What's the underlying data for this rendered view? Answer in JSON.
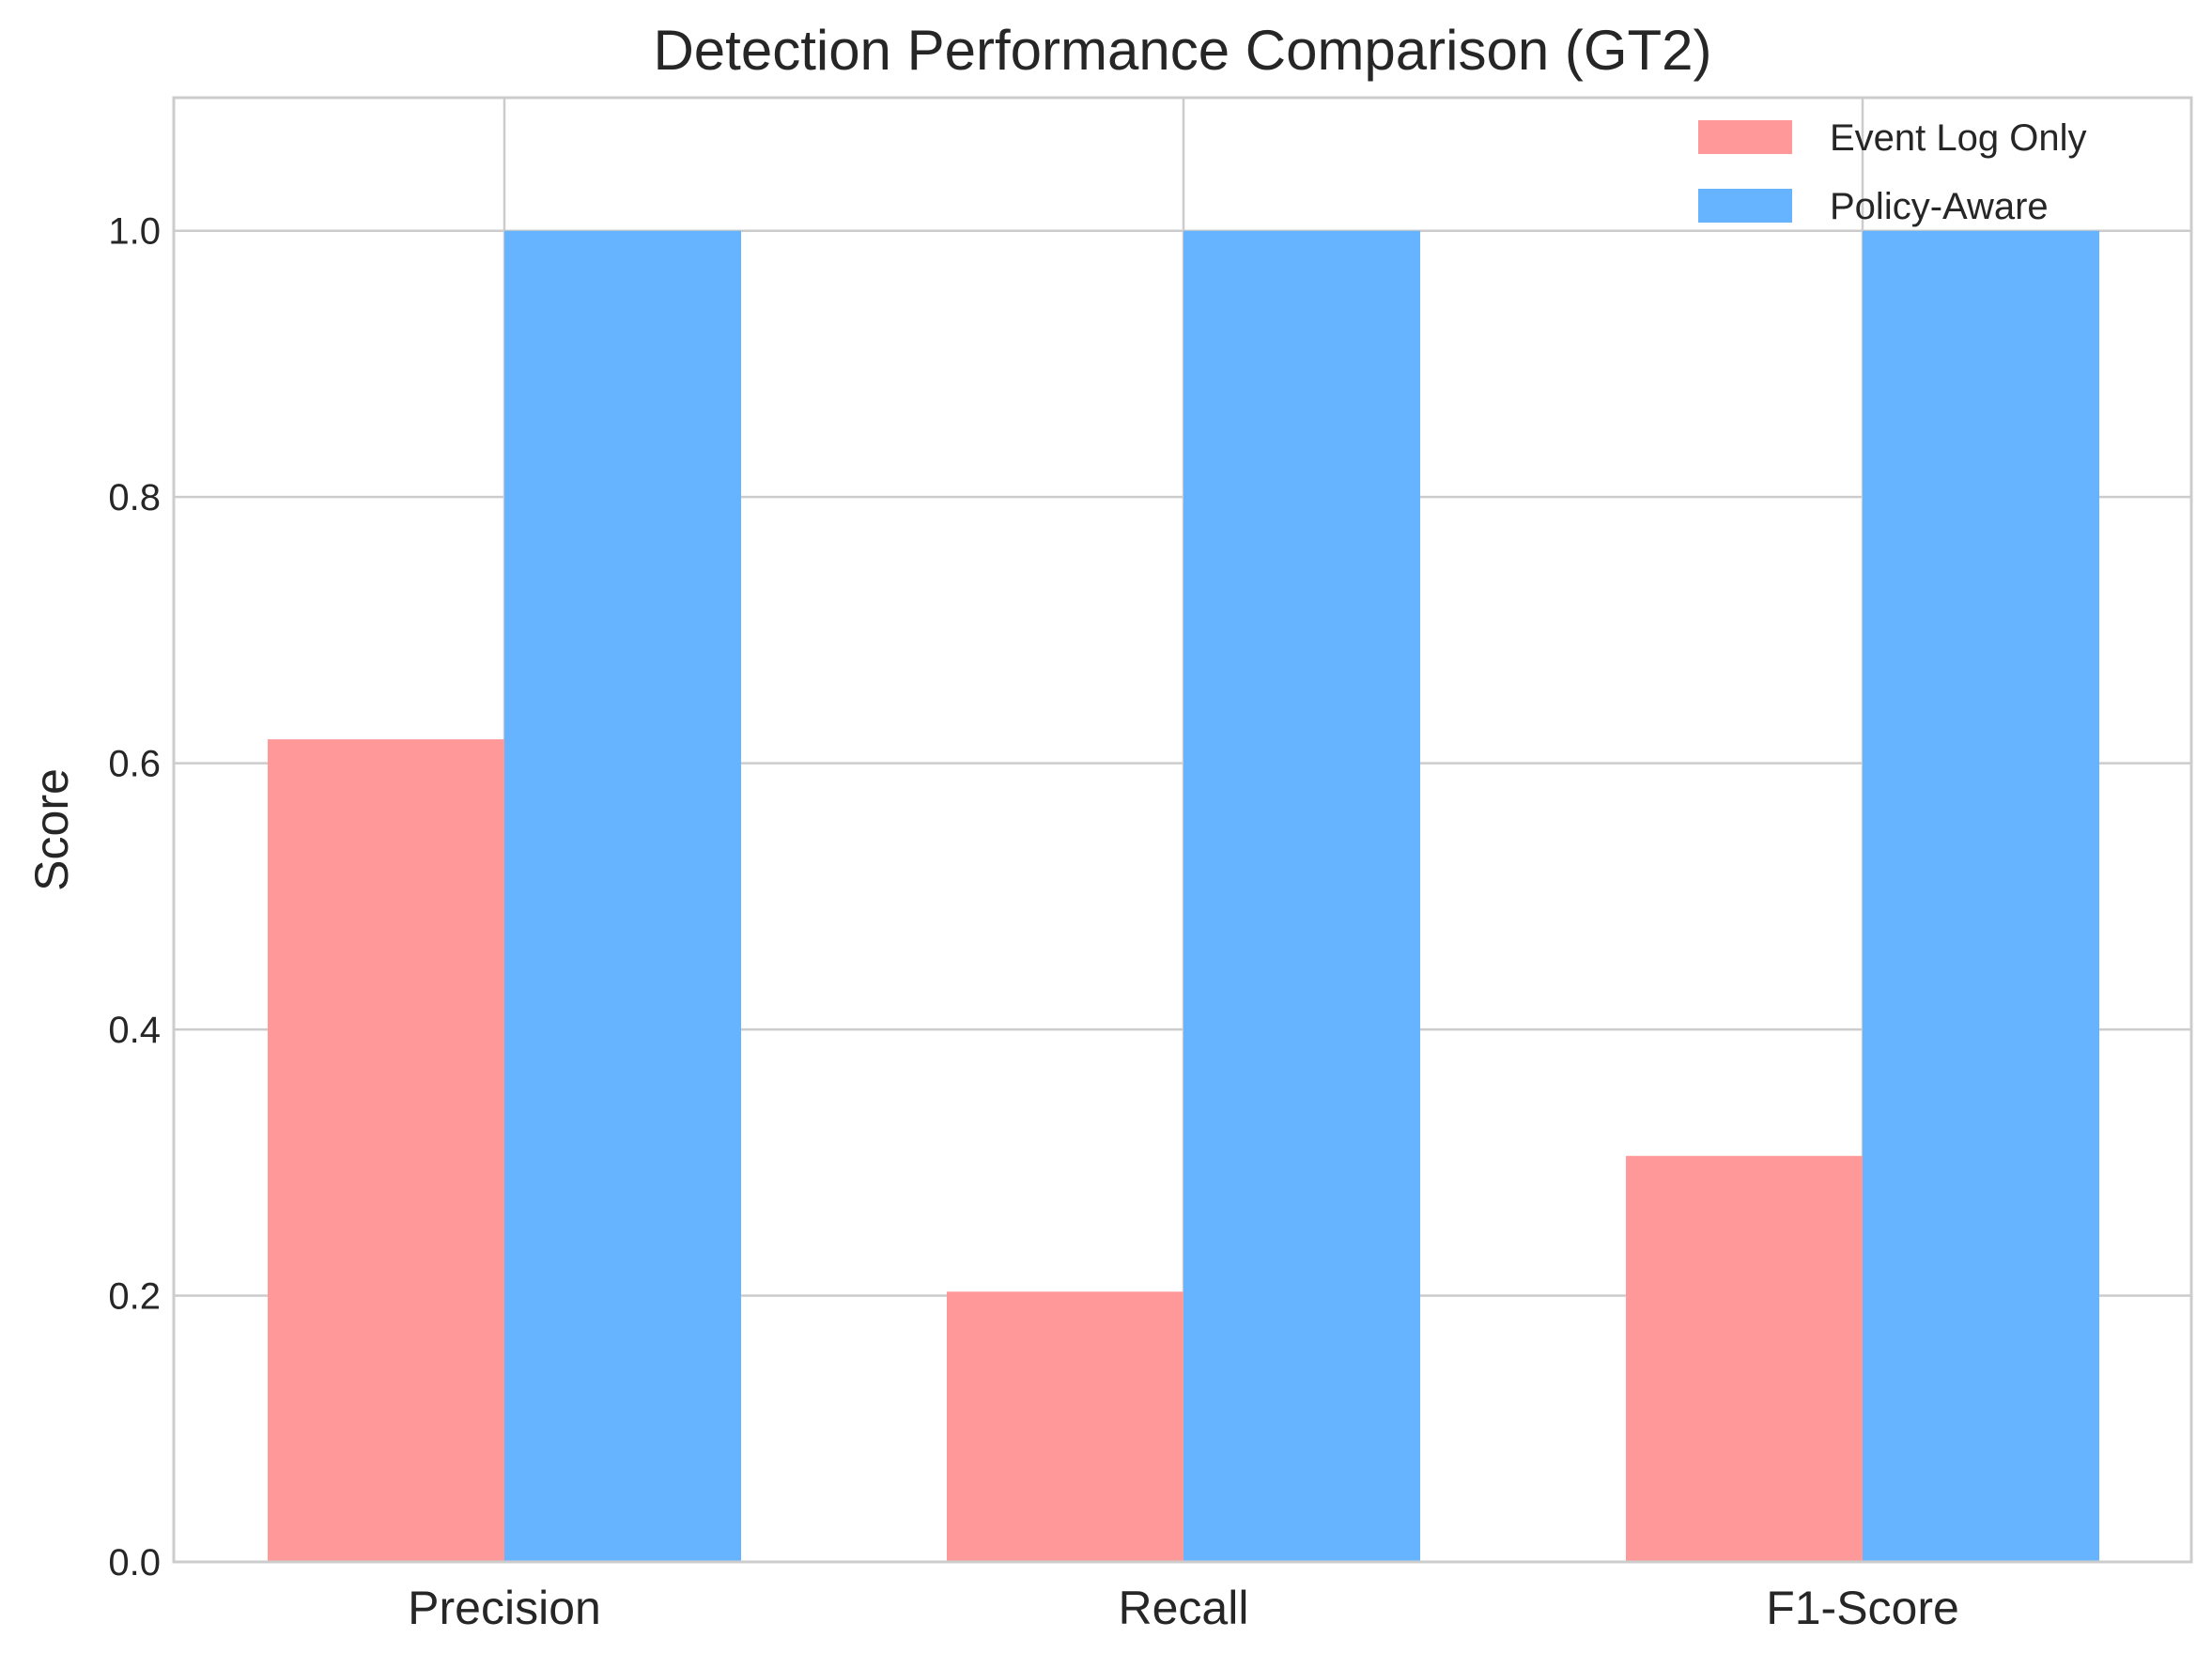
{
  "chart_data": {
    "type": "bar",
    "title": "Detection Performance Comparison (GT2)",
    "xlabel": "",
    "ylabel": "Score",
    "categories": [
      "Precision",
      "Recall",
      "F1-Score"
    ],
    "series": [
      {
        "name": "Event Log Only",
        "color": "#ff9999",
        "values": [
          0.618,
          0.203,
          0.305
        ]
      },
      {
        "name": "Policy-Aware",
        "color": "#66b3ff",
        "values": [
          1.0,
          1.0,
          1.0
        ]
      }
    ],
    "ylim": [
      0,
      1.1
    ],
    "yticks": [
      "0.0",
      "0.2",
      "0.4",
      "0.6",
      "0.8",
      "1.0"
    ],
    "grid": true,
    "legend_position": "top-right"
  }
}
